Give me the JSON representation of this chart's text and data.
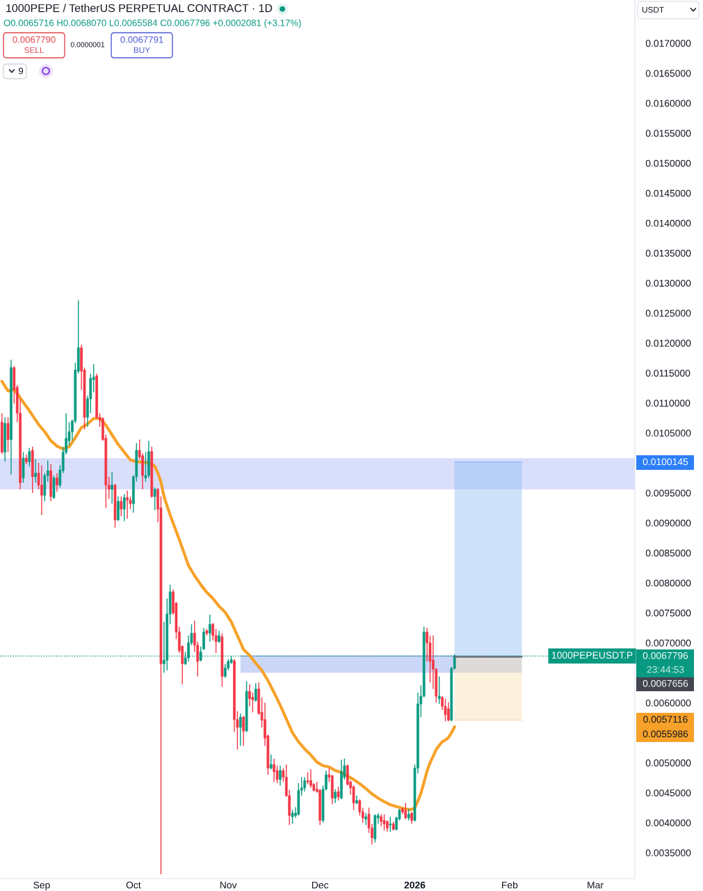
{
  "chart_data": {
    "type": "candlestick",
    "title": "1000PEPE / TetherUS PERPETUAL CONTRACT · 1D",
    "subtitle": "O0.0065716 H0.0068070 L0.0065584 C0.0067796 +0.0002081 (+3.17%)",
    "x": [
      "2025-08-19",
      "2025-08-20",
      "2025-08-21",
      "2025-08-22",
      "2025-08-23",
      "2025-08-24",
      "2025-08-25",
      "2025-08-26",
      "2025-08-27",
      "2025-08-28",
      "2025-08-29",
      "2025-08-30",
      "2025-08-31",
      "2025-09-01",
      "2025-09-02",
      "2025-09-03",
      "2025-09-04",
      "2025-09-05",
      "2025-09-06",
      "2025-09-07",
      "2025-09-08",
      "2025-09-09",
      "2025-09-10",
      "2025-09-11",
      "2025-09-12",
      "2025-09-13",
      "2025-09-14",
      "2025-09-15",
      "2025-09-16",
      "2025-09-17",
      "2025-09-18",
      "2025-09-19",
      "2025-09-20",
      "2025-09-21",
      "2025-09-22",
      "2025-09-23",
      "2025-09-24",
      "2025-09-25",
      "2025-09-26",
      "2025-09-27",
      "2025-09-28",
      "2025-09-29",
      "2025-09-30",
      "2025-10-01",
      "2025-10-02",
      "2025-10-03",
      "2025-10-04",
      "2025-10-05",
      "2025-10-06",
      "2025-10-07",
      "2025-10-08",
      "2025-10-09",
      "2025-10-10",
      "2025-10-11",
      "2025-10-12",
      "2025-10-13",
      "2025-10-14",
      "2025-10-15",
      "2025-10-16",
      "2025-10-17",
      "2025-10-18",
      "2025-10-19",
      "2025-10-20",
      "2025-10-21",
      "2025-10-22",
      "2025-10-23",
      "2025-10-24",
      "2025-10-25",
      "2025-10-26",
      "2025-10-27",
      "2025-10-28",
      "2025-10-29",
      "2025-10-30",
      "2025-10-31",
      "2025-11-01",
      "2025-11-02",
      "2025-11-03",
      "2025-11-04",
      "2025-11-05",
      "2025-11-06",
      "2025-11-07",
      "2025-11-08",
      "2025-11-09",
      "2025-11-10",
      "2025-11-11",
      "2025-11-12",
      "2025-11-13",
      "2025-11-14",
      "2025-11-15",
      "2025-11-16",
      "2025-11-17",
      "2025-11-18",
      "2025-11-19",
      "2025-11-20",
      "2025-11-21",
      "2025-11-22",
      "2025-11-23",
      "2025-11-24",
      "2025-11-25",
      "2025-11-26",
      "2025-11-27",
      "2025-11-28",
      "2025-11-29",
      "2025-11-30",
      "2025-12-01",
      "2025-12-02",
      "2025-12-03",
      "2025-12-04",
      "2025-12-05",
      "2025-12-06",
      "2025-12-07",
      "2025-12-08",
      "2025-12-09",
      "2025-12-10",
      "2025-12-11",
      "2025-12-12",
      "2025-12-13",
      "2025-12-14",
      "2025-12-15",
      "2025-12-16",
      "2025-12-17",
      "2025-12-18",
      "2025-12-19",
      "2025-12-20",
      "2025-12-21",
      "2025-12-22",
      "2025-12-23",
      "2025-12-24",
      "2025-12-25",
      "2025-12-26",
      "2025-12-27",
      "2025-12-28",
      "2025-12-29",
      "2025-12-30",
      "2025-12-31",
      "2026-01-01",
      "2026-01-02",
      "2026-01-03",
      "2026-01-04",
      "2026-01-05",
      "2026-01-06",
      "2026-01-07",
      "2026-01-08",
      "2026-01-09",
      "2026-01-10",
      "2026-01-11",
      "2026-01-12",
      "2026-01-13",
      "2026-01-14"
    ],
    "ohlc": [
      [
        0.01068,
        0.01083,
        0.01015,
        0.01018
      ],
      [
        0.01018,
        0.01076,
        0.01002,
        0.01066
      ],
      [
        0.01066,
        0.01076,
        0.01018,
        0.01039
      ],
      [
        0.01039,
        0.01172,
        0.00981,
        0.01159
      ],
      [
        0.01159,
        0.01161,
        0.01099,
        0.01122
      ],
      [
        0.01126,
        0.0113,
        0.01068,
        0.01083
      ],
      [
        0.01083,
        0.01107,
        0.00956,
        0.00967
      ],
      [
        0.00975,
        0.01018,
        0.00967,
        0.01008
      ],
      [
        0.01008,
        0.01014,
        0.00998,
        0.01002
      ],
      [
        0.01002,
        0.01025,
        0.00994,
        0.01019
      ],
      [
        0.01021,
        0.01027,
        0.0095,
        0.00977
      ],
      [
        0.00977,
        0.01006,
        0.00967,
        0.00983
      ],
      [
        0.00983,
        0.01,
        0.00956,
        0.00963
      ],
      [
        0.00963,
        0.00996,
        0.00913,
        0.00946
      ],
      [
        0.00946,
        0.00983,
        0.00936,
        0.00979
      ],
      [
        0.00979,
        0.01004,
        0.00969,
        0.00987
      ],
      [
        0.00987,
        0.00998,
        0.00936,
        0.00944
      ],
      [
        0.00942,
        0.00979,
        0.0094,
        0.00975
      ],
      [
        0.00975,
        0.00983,
        0.00952,
        0.00963
      ],
      [
        0.00963,
        0.00996,
        0.00959,
        0.00988
      ],
      [
        0.00987,
        0.01027,
        0.00983,
        0.01018
      ],
      [
        0.01018,
        0.01083,
        0.01014,
        0.01041
      ],
      [
        0.01037,
        0.01068,
        0.01029,
        0.01052
      ],
      [
        0.01052,
        0.01072,
        0.01037,
        0.0107
      ],
      [
        0.0107,
        0.01167,
        0.01066,
        0.01155
      ],
      [
        0.01153,
        0.01271,
        0.01149,
        0.01192
      ],
      [
        0.01192,
        0.01197,
        0.01122,
        0.01153
      ],
      [
        0.01155,
        0.01159,
        0.01056,
        0.01076
      ],
      [
        0.01076,
        0.01112,
        0.0106,
        0.01107
      ],
      [
        0.01107,
        0.01149,
        0.01083,
        0.01141
      ],
      [
        0.01139,
        0.01165,
        0.01118,
        0.01143
      ],
      [
        0.01145,
        0.01149,
        0.01074,
        0.01076
      ],
      [
        0.01076,
        0.01083,
        0.0106,
        0.01072
      ],
      [
        0.01074,
        0.01076,
        0.01037,
        0.01039
      ],
      [
        0.01041,
        0.01047,
        0.00925,
        0.00963
      ],
      [
        0.00963,
        0.00977,
        0.0094,
        0.00956
      ],
      [
        0.00956,
        0.00985,
        0.00932,
        0.00963
      ],
      [
        0.00963,
        0.00965,
        0.00892,
        0.00905
      ],
      [
        0.00905,
        0.00944,
        0.00903,
        0.00936
      ],
      [
        0.00936,
        0.00944,
        0.00911,
        0.00923
      ],
      [
        0.00923,
        0.00948,
        0.00903,
        0.00942
      ],
      [
        0.00942,
        0.00954,
        0.00907,
        0.00938
      ],
      [
        0.00938,
        0.00944,
        0.00923,
        0.00932
      ],
      [
        0.00932,
        0.00979,
        0.00917,
        0.00977
      ],
      [
        0.00977,
        0.01033,
        0.00969,
        0.01021
      ],
      [
        0.01021,
        0.01039,
        0.01006,
        0.0101
      ],
      [
        0.01012,
        0.01016,
        0.00956,
        0.00979
      ],
      [
        0.00975,
        0.01018,
        0.00969,
        0.00979
      ],
      [
        0.00979,
        0.01037,
        0.00975,
        0.01019
      ],
      [
        0.01019,
        0.01027,
        0.00942,
        0.00944
      ],
      [
        0.00944,
        0.00959,
        0.00921,
        0.00956
      ],
      [
        0.00956,
        0.00958,
        0.00901,
        0.00923
      ],
      [
        0.00925,
        0.00944,
        0.00314,
        0.00665
      ],
      [
        0.00665,
        0.00735,
        0.0065,
        0.00671
      ],
      [
        0.00671,
        0.00774,
        0.00654,
        0.00748
      ],
      [
        0.00748,
        0.00797,
        0.00731,
        0.00785
      ],
      [
        0.00785,
        0.00789,
        0.00747,
        0.0075
      ],
      [
        0.00766,
        0.00768,
        0.00706,
        0.00718
      ],
      [
        0.00718,
        0.00727,
        0.00683,
        0.00687
      ],
      [
        0.00694,
        0.00696,
        0.00631,
        0.00665
      ],
      [
        0.00665,
        0.00685,
        0.00663,
        0.00675
      ],
      [
        0.00675,
        0.00712,
        0.00669,
        0.007
      ],
      [
        0.007,
        0.00731,
        0.00696,
        0.00716
      ],
      [
        0.00716,
        0.00737,
        0.00685,
        0.00696
      ],
      [
        0.00696,
        0.00702,
        0.00644,
        0.00669
      ],
      [
        0.00671,
        0.00694,
        0.00669,
        0.00685
      ],
      [
        0.0069,
        0.00725,
        0.00688,
        0.00718
      ],
      [
        0.0072,
        0.00723,
        0.00712,
        0.00716
      ],
      [
        0.00716,
        0.00747,
        0.00702,
        0.00731
      ],
      [
        0.00731,
        0.00733,
        0.00704,
        0.00712
      ],
      [
        0.00712,
        0.00723,
        0.00683,
        0.00702
      ],
      [
        0.00702,
        0.0072,
        0.007,
        0.00712
      ],
      [
        0.0071,
        0.00716,
        0.00627,
        0.00644
      ],
      [
        0.00644,
        0.00665,
        0.00642,
        0.00658
      ],
      [
        0.00658,
        0.00673,
        0.00654,
        0.00669
      ],
      [
        0.00667,
        0.00678,
        0.00665,
        0.00672
      ],
      [
        0.0067,
        0.00673,
        0.00551,
        0.00572
      ],
      [
        0.00572,
        0.00586,
        0.00522,
        0.00559
      ],
      [
        0.00559,
        0.00582,
        0.00528,
        0.00576
      ],
      [
        0.00576,
        0.00578,
        0.00528,
        0.00553
      ],
      [
        0.00553,
        0.00636,
        0.00551,
        0.00619
      ],
      [
        0.00619,
        0.00631,
        0.00594,
        0.00607
      ],
      [
        0.00609,
        0.00617,
        0.00584,
        0.00605
      ],
      [
        0.00604,
        0.00633,
        0.00602,
        0.00623
      ],
      [
        0.00623,
        0.00634,
        0.0058,
        0.00582
      ],
      [
        0.00584,
        0.00609,
        0.00559,
        0.00571
      ],
      [
        0.00572,
        0.006,
        0.00528,
        0.00541
      ],
      [
        0.00545,
        0.00547,
        0.0048,
        0.00491
      ],
      [
        0.00491,
        0.00514,
        0.00489,
        0.00497
      ],
      [
        0.00497,
        0.00507,
        0.00468,
        0.00485
      ],
      [
        0.00487,
        0.00495,
        0.00466,
        0.00472
      ],
      [
        0.00472,
        0.00495,
        0.00462,
        0.00487
      ],
      [
        0.00487,
        0.00491,
        0.00468,
        0.00476
      ],
      [
        0.00476,
        0.00497,
        0.00443,
        0.00445
      ],
      [
        0.00445,
        0.00455,
        0.00396,
        0.00412
      ],
      [
        0.0041,
        0.00422,
        0.00398,
        0.00416
      ],
      [
        0.00412,
        0.00426,
        0.00408,
        0.00416
      ],
      [
        0.00414,
        0.00466,
        0.00412,
        0.00454
      ],
      [
        0.00454,
        0.00476,
        0.00445,
        0.00458
      ],
      [
        0.00458,
        0.00476,
        0.00452,
        0.0047
      ],
      [
        0.0047,
        0.00484,
        0.00464,
        0.00468
      ],
      [
        0.0047,
        0.00489,
        0.00458,
        0.00462
      ],
      [
        0.00464,
        0.00466,
        0.00452,
        0.00454
      ],
      [
        0.00456,
        0.00468,
        0.0045,
        0.00452
      ],
      [
        0.00454,
        0.00456,
        0.00396,
        0.00404
      ],
      [
        0.00404,
        0.00462,
        0.004,
        0.00456
      ],
      [
        0.00456,
        0.00487,
        0.00454,
        0.0048
      ],
      [
        0.0048,
        0.00491,
        0.00468,
        0.00476
      ],
      [
        0.00478,
        0.0048,
        0.00431,
        0.00441
      ],
      [
        0.00441,
        0.00456,
        0.00433,
        0.00451
      ],
      [
        0.00452,
        0.0046,
        0.00437,
        0.00443
      ],
      [
        0.00441,
        0.00505,
        0.00439,
        0.00485
      ],
      [
        0.00476,
        0.00507,
        0.00472,
        0.00495
      ],
      [
        0.00495,
        0.00497,
        0.00462,
        0.00464
      ],
      [
        0.00468,
        0.0047,
        0.00447,
        0.00458
      ],
      [
        0.0046,
        0.00462,
        0.00421,
        0.00433
      ],
      [
        0.00433,
        0.00445,
        0.00431,
        0.00437
      ],
      [
        0.00437,
        0.00439,
        0.00412,
        0.00418
      ],
      [
        0.00418,
        0.00425,
        0.004,
        0.00408
      ],
      [
        0.00406,
        0.00416,
        0.00396,
        0.0041
      ],
      [
        0.00414,
        0.00425,
        0.00383,
        0.00391
      ],
      [
        0.00391,
        0.00398,
        0.00364,
        0.00375
      ],
      [
        0.00373,
        0.00414,
        0.00367,
        0.00412
      ],
      [
        0.00408,
        0.00416,
        0.00398,
        0.00412
      ],
      [
        0.0041,
        0.00414,
        0.00394,
        0.00402
      ],
      [
        0.00404,
        0.00414,
        0.00387,
        0.00398
      ],
      [
        0.00402,
        0.00404,
        0.00385,
        0.00391
      ],
      [
        0.00396,
        0.0041,
        0.00385,
        0.00398
      ],
      [
        0.00398,
        0.00402,
        0.00387,
        0.00389
      ],
      [
        0.00389,
        0.0041,
        0.00387,
        0.00408
      ],
      [
        0.00406,
        0.00423,
        0.00404,
        0.00421
      ],
      [
        0.00423,
        0.00425,
        0.00414,
        0.00418
      ],
      [
        0.0042,
        0.00433,
        0.00406,
        0.00408
      ],
      [
        0.00408,
        0.00423,
        0.00404,
        0.00414
      ],
      [
        0.00416,
        0.00418,
        0.00398,
        0.00404
      ],
      [
        0.00404,
        0.00497,
        0.00402,
        0.00491
      ],
      [
        0.00491,
        0.00617,
        0.00482,
        0.00598
      ],
      [
        0.00598,
        0.00629,
        0.00576,
        0.00611
      ],
      [
        0.00611,
        0.00727,
        0.00609,
        0.00718
      ],
      [
        0.00718,
        0.00725,
        0.00669,
        0.007
      ],
      [
        0.007,
        0.00712,
        0.00634,
        0.00669
      ],
      [
        0.00671,
        0.00712,
        0.00623,
        0.00656
      ],
      [
        0.00656,
        0.00658,
        0.006,
        0.00611
      ],
      [
        0.00607,
        0.00644,
        0.00598,
        0.00611
      ],
      [
        0.00609,
        0.00611,
        0.00588,
        0.00594
      ],
      [
        0.00594,
        0.00607,
        0.00569,
        0.0058
      ],
      [
        0.0059,
        0.00601,
        0.00569,
        0.00571
      ],
      [
        0.00571,
        0.0066,
        0.00569,
        0.0065715
      ],
      [
        0.0065716,
        0.006807,
        0.0065584,
        0.0067796
      ]
    ],
    "colors": [
      "#f23645",
      "#089981",
      "#f23645",
      "#089981",
      "#f23645",
      "#f23645",
      "#f23645",
      "#089981",
      "#f23645",
      "#089981",
      "#f23645",
      "#089981",
      "#f23645",
      "#f23645",
      "#089981",
      "#089981",
      "#f23645",
      "#089981",
      "#f23645",
      "#089981",
      "#089981",
      "#089981",
      "#089981",
      "#089981",
      "#089981",
      "#089981",
      "#f23645",
      "#f23645",
      "#089981",
      "#089981",
      "#089981",
      "#f23645",
      "#f23645",
      "#f23645",
      "#f23645",
      "#f23645",
      "#089981",
      "#f23645",
      "#089981",
      "#f23645",
      "#089981",
      "#f23645",
      "#f23645",
      "#089981",
      "#089981",
      "#f23645",
      "#f23645",
      "#089981",
      "#089981",
      "#f23645",
      "#089981",
      "#f23645",
      "#f23645",
      "#089981",
      "#089981",
      "#089981",
      "#f23645",
      "#f23645",
      "#f23645",
      "#f23645",
      "#089981",
      "#089981",
      "#089981",
      "#f23645",
      "#f23645",
      "#089981",
      "#089981",
      "#f23645",
      "#089981",
      "#f23645",
      "#f23645",
      "#089981",
      "#f23645",
      "#089981",
      "#089981",
      "#089981",
      "#f23645",
      "#f23645",
      "#089981",
      "#f23645",
      "#089981",
      "#f23645",
      "#f23645",
      "#089981",
      "#f23645",
      "#f23645",
      "#f23645",
      "#f23645",
      "#089981",
      "#f23645",
      "#f23645",
      "#089981",
      "#f23645",
      "#f23645",
      "#f23645",
      "#089981",
      "#089981",
      "#089981",
      "#089981",
      "#089981",
      "#f23645",
      "#f23645",
      "#f23645",
      "#f23645",
      "#f23645",
      "#089981",
      "#089981",
      "#f23645",
      "#f23645",
      "#089981",
      "#f23645",
      "#089981",
      "#089981",
      "#f23645",
      "#f23645",
      "#f23645",
      "#089981",
      "#f23645",
      "#f23645",
      "#089981",
      "#f23645",
      "#f23645",
      "#089981",
      "#089981",
      "#f23645",
      "#f23645",
      "#f23645",
      "#089981",
      "#f23645",
      "#089981",
      "#089981",
      "#f23645",
      "#f23645",
      "#089981",
      "#f23645",
      "#089981",
      "#089981",
      "#089981",
      "#089981",
      "#f23645",
      "#f23645",
      "#f23645",
      "#f23645",
      "#089981",
      "#f23645",
      "#f23645",
      "#f23645",
      "#089981",
      "#089981"
    ],
    "series": [
      {
        "type": "line",
        "color": "#f7a128",
        "x": [
          "2025-08-19",
          "2025-08-21",
          "2025-08-22",
          "2025-08-23",
          "2025-08-24",
          "2025-08-26",
          "2025-08-28",
          "2025-08-31",
          "2025-09-02",
          "2025-09-04",
          "2025-09-06",
          "2025-09-08",
          "2025-09-10",
          "2025-09-12",
          "2025-09-14",
          "2025-09-16",
          "2025-09-18",
          "2025-09-20",
          "2025-09-22",
          "2025-09-24",
          "2025-09-26",
          "2025-09-28",
          "2025-09-30",
          "2025-10-02",
          "2025-10-05",
          "2025-10-07",
          "2025-10-08",
          "2025-10-09",
          "2025-10-10",
          "2025-10-11",
          "2025-10-13",
          "2025-10-15",
          "2025-10-17",
          "2025-10-19",
          "2025-10-21",
          "2025-10-23",
          "2025-10-25",
          "2025-10-27",
          "2025-10-29",
          "2025-10-31",
          "2025-11-02",
          "2025-11-04",
          "2025-11-06",
          "2025-11-08",
          "2025-11-10",
          "2025-11-12",
          "2025-11-14",
          "2025-11-16",
          "2025-11-18",
          "2025-11-20",
          "2025-11-22",
          "2025-11-24",
          "2025-11-26",
          "2025-11-28",
          "2025-11-30",
          "2025-12-02",
          "2025-12-04",
          "2025-12-06",
          "2025-12-08",
          "2025-12-10",
          "2025-12-12",
          "2025-12-14",
          "2025-12-16",
          "2025-12-18",
          "2025-12-20",
          "2025-12-22",
          "2025-12-24",
          "2025-12-26",
          "2025-12-28",
          "2025-12-30",
          "2025-12-31",
          "2026-01-01",
          "2026-01-02",
          "2026-01-03",
          "2026-01-04",
          "2026-01-05",
          "2026-01-06",
          "2026-01-07",
          "2026-01-08",
          "2026-01-09",
          "2026-01-10",
          "2026-01-11",
          "2026-01-12",
          "2026-01-13",
          "2026-01-14"
        ],
        "values": [
          0.01136,
          0.0112,
          0.01121,
          0.01122,
          0.01116,
          0.01101,
          0.01087,
          0.01064,
          0.01052,
          0.01037,
          0.01028,
          0.01023,
          0.01027,
          0.01042,
          0.01059,
          0.01065,
          0.01074,
          0.01074,
          0.01063,
          0.01047,
          0.01031,
          0.01018,
          0.01005,
          0.01002,
          0.01001,
          0.00998,
          0.00994,
          0.00983,
          0.00968,
          0.00944,
          0.00913,
          0.00886,
          0.00858,
          0.00829,
          0.00812,
          0.00797,
          0.00784,
          0.00774,
          0.00761,
          0.00751,
          0.00735,
          0.00712,
          0.00689,
          0.00679,
          0.00666,
          0.00654,
          0.00637,
          0.00617,
          0.00596,
          0.00573,
          0.0055,
          0.00535,
          0.00523,
          0.00513,
          0.00501,
          0.00495,
          0.00493,
          0.00487,
          0.00484,
          0.00478,
          0.00472,
          0.00465,
          0.00457,
          0.00448,
          0.00441,
          0.00435,
          0.0043,
          0.00427,
          0.00424,
          0.00422,
          0.00422,
          0.00425,
          0.00436,
          0.00449,
          0.00467,
          0.00486,
          0.005,
          0.00511,
          0.00522,
          0.00529,
          0.00535,
          0.00538,
          0.00542,
          0.0055,
          0.0055986
        ]
      },
      {
        "type": "line",
        "color": "#8fa3ee",
        "x": [
          "2025-11-05",
          "2026-02-05"
        ],
        "values": [
          0.00678,
          0.00678
        ],
        "lower": [
          0.0065,
          0.0065
        ],
        "upper": [
          0.00678,
          0.00678
        ]
      },
      {
        "type": "line",
        "color": "#90bdf2",
        "x": [
          "2026-01-14",
          "2026-02-05"
        ],
        "values": [
          0.0100145,
          0.0100145
        ],
        "lower": [
          0.0067656,
          0.0067656
        ],
        "upper": [
          0.0100145,
          0.0100145
        ]
      },
      {
        "type": "line",
        "color": "#f6dfb4",
        "x": [
          "2026-01-14",
          "2026-02-05"
        ],
        "values": [
          0.0057116,
          0.0057116
        ],
        "lower": [
          0.0057116,
          0.0057116
        ],
        "upper": [
          0.0067656,
          0.0067656
        ]
      },
      {
        "type": "line",
        "color": "#6a6d78",
        "x": [
          "2026-01-14",
          "2026-02-05"
        ],
        "values": [
          0.0067656,
          0.0067656
        ]
      }
    ],
    "bands": [
      {
        "axis": "y",
        "from": 0.00956,
        "to": 0.01008,
        "color": "#d9defb"
      }
    ],
    "ref_lines": [
      {
        "axis": "y",
        "value": 0.0067796,
        "label": "1000PEPEUSDT.P",
        "color": "#089981",
        "line_style": "dotted"
      }
    ],
    "annotations": [
      "0.0067790",
      "SELL",
      "0.0000001",
      "0.0067791",
      "BUY",
      "9",
      "USDT",
      "0.0100145",
      "0.0067796",
      "23:44:53",
      "0.0067656",
      "0.0057116",
      "0.0055986"
    ],
    "xlim": [
      "2025-08-18T09:00",
      "2026-03-13T23:00"
    ],
    "xticks": [
      {
        "value": "2025-09-01",
        "label": "Sep"
      },
      {
        "value": "2025-10-01",
        "label": "Oct"
      },
      {
        "value": "2025-11-01",
        "label": "Nov"
      },
      {
        "value": "2025-12-01",
        "label": "Dec"
      },
      {
        "value": "2026-01-01",
        "label": "2026"
      },
      {
        "value": "2026-02-01",
        "label": "Feb"
      },
      {
        "value": "2026-03-01",
        "label": "Mar"
      }
    ],
    "ylim": [
      0.00307,
      0.01772
    ],
    "yticks": [
      {
        "value": 0.0035,
        "label": "0.0035000"
      },
      {
        "value": 0.004,
        "label": "0.0040000"
      },
      {
        "value": 0.0045,
        "label": "0.0045000"
      },
      {
        "value": 0.005,
        "label": "0.0050000"
      },
      {
        "value": 0.006,
        "label": "0.0060000"
      },
      {
        "value": 0.007,
        "label": "0.0070000"
      },
      {
        "value": 0.0075,
        "label": "0.0075000"
      },
      {
        "value": 0.008,
        "label": "0.0080000"
      },
      {
        "value": 0.0085,
        "label": "0.0085000"
      },
      {
        "value": 0.009,
        "label": "0.0090000"
      },
      {
        "value": 0.0095,
        "label": "0.0095000"
      },
      {
        "value": 0.0105,
        "label": "0.0105000"
      },
      {
        "value": 0.011,
        "label": "0.0110000"
      },
      {
        "value": 0.0115,
        "label": "0.0115000"
      },
      {
        "value": 0.012,
        "label": "0.0120000"
      },
      {
        "value": 0.0125,
        "label": "0.0125000"
      },
      {
        "value": 0.013,
        "label": "0.0130000"
      },
      {
        "value": 0.0135,
        "label": "0.0135000"
      },
      {
        "value": 0.014,
        "label": "0.0140000"
      },
      {
        "value": 0.0145,
        "label": "0.0145000"
      },
      {
        "value": 0.015,
        "label": "0.0150000"
      },
      {
        "value": 0.0155,
        "label": "0.0155000"
      },
      {
        "value": 0.016,
        "label": "0.0160000"
      },
      {
        "value": 0.0165,
        "label": "0.0165000"
      },
      {
        "value": 0.017,
        "label": "0.0170000"
      }
    ],
    "grid": false
  }
}
